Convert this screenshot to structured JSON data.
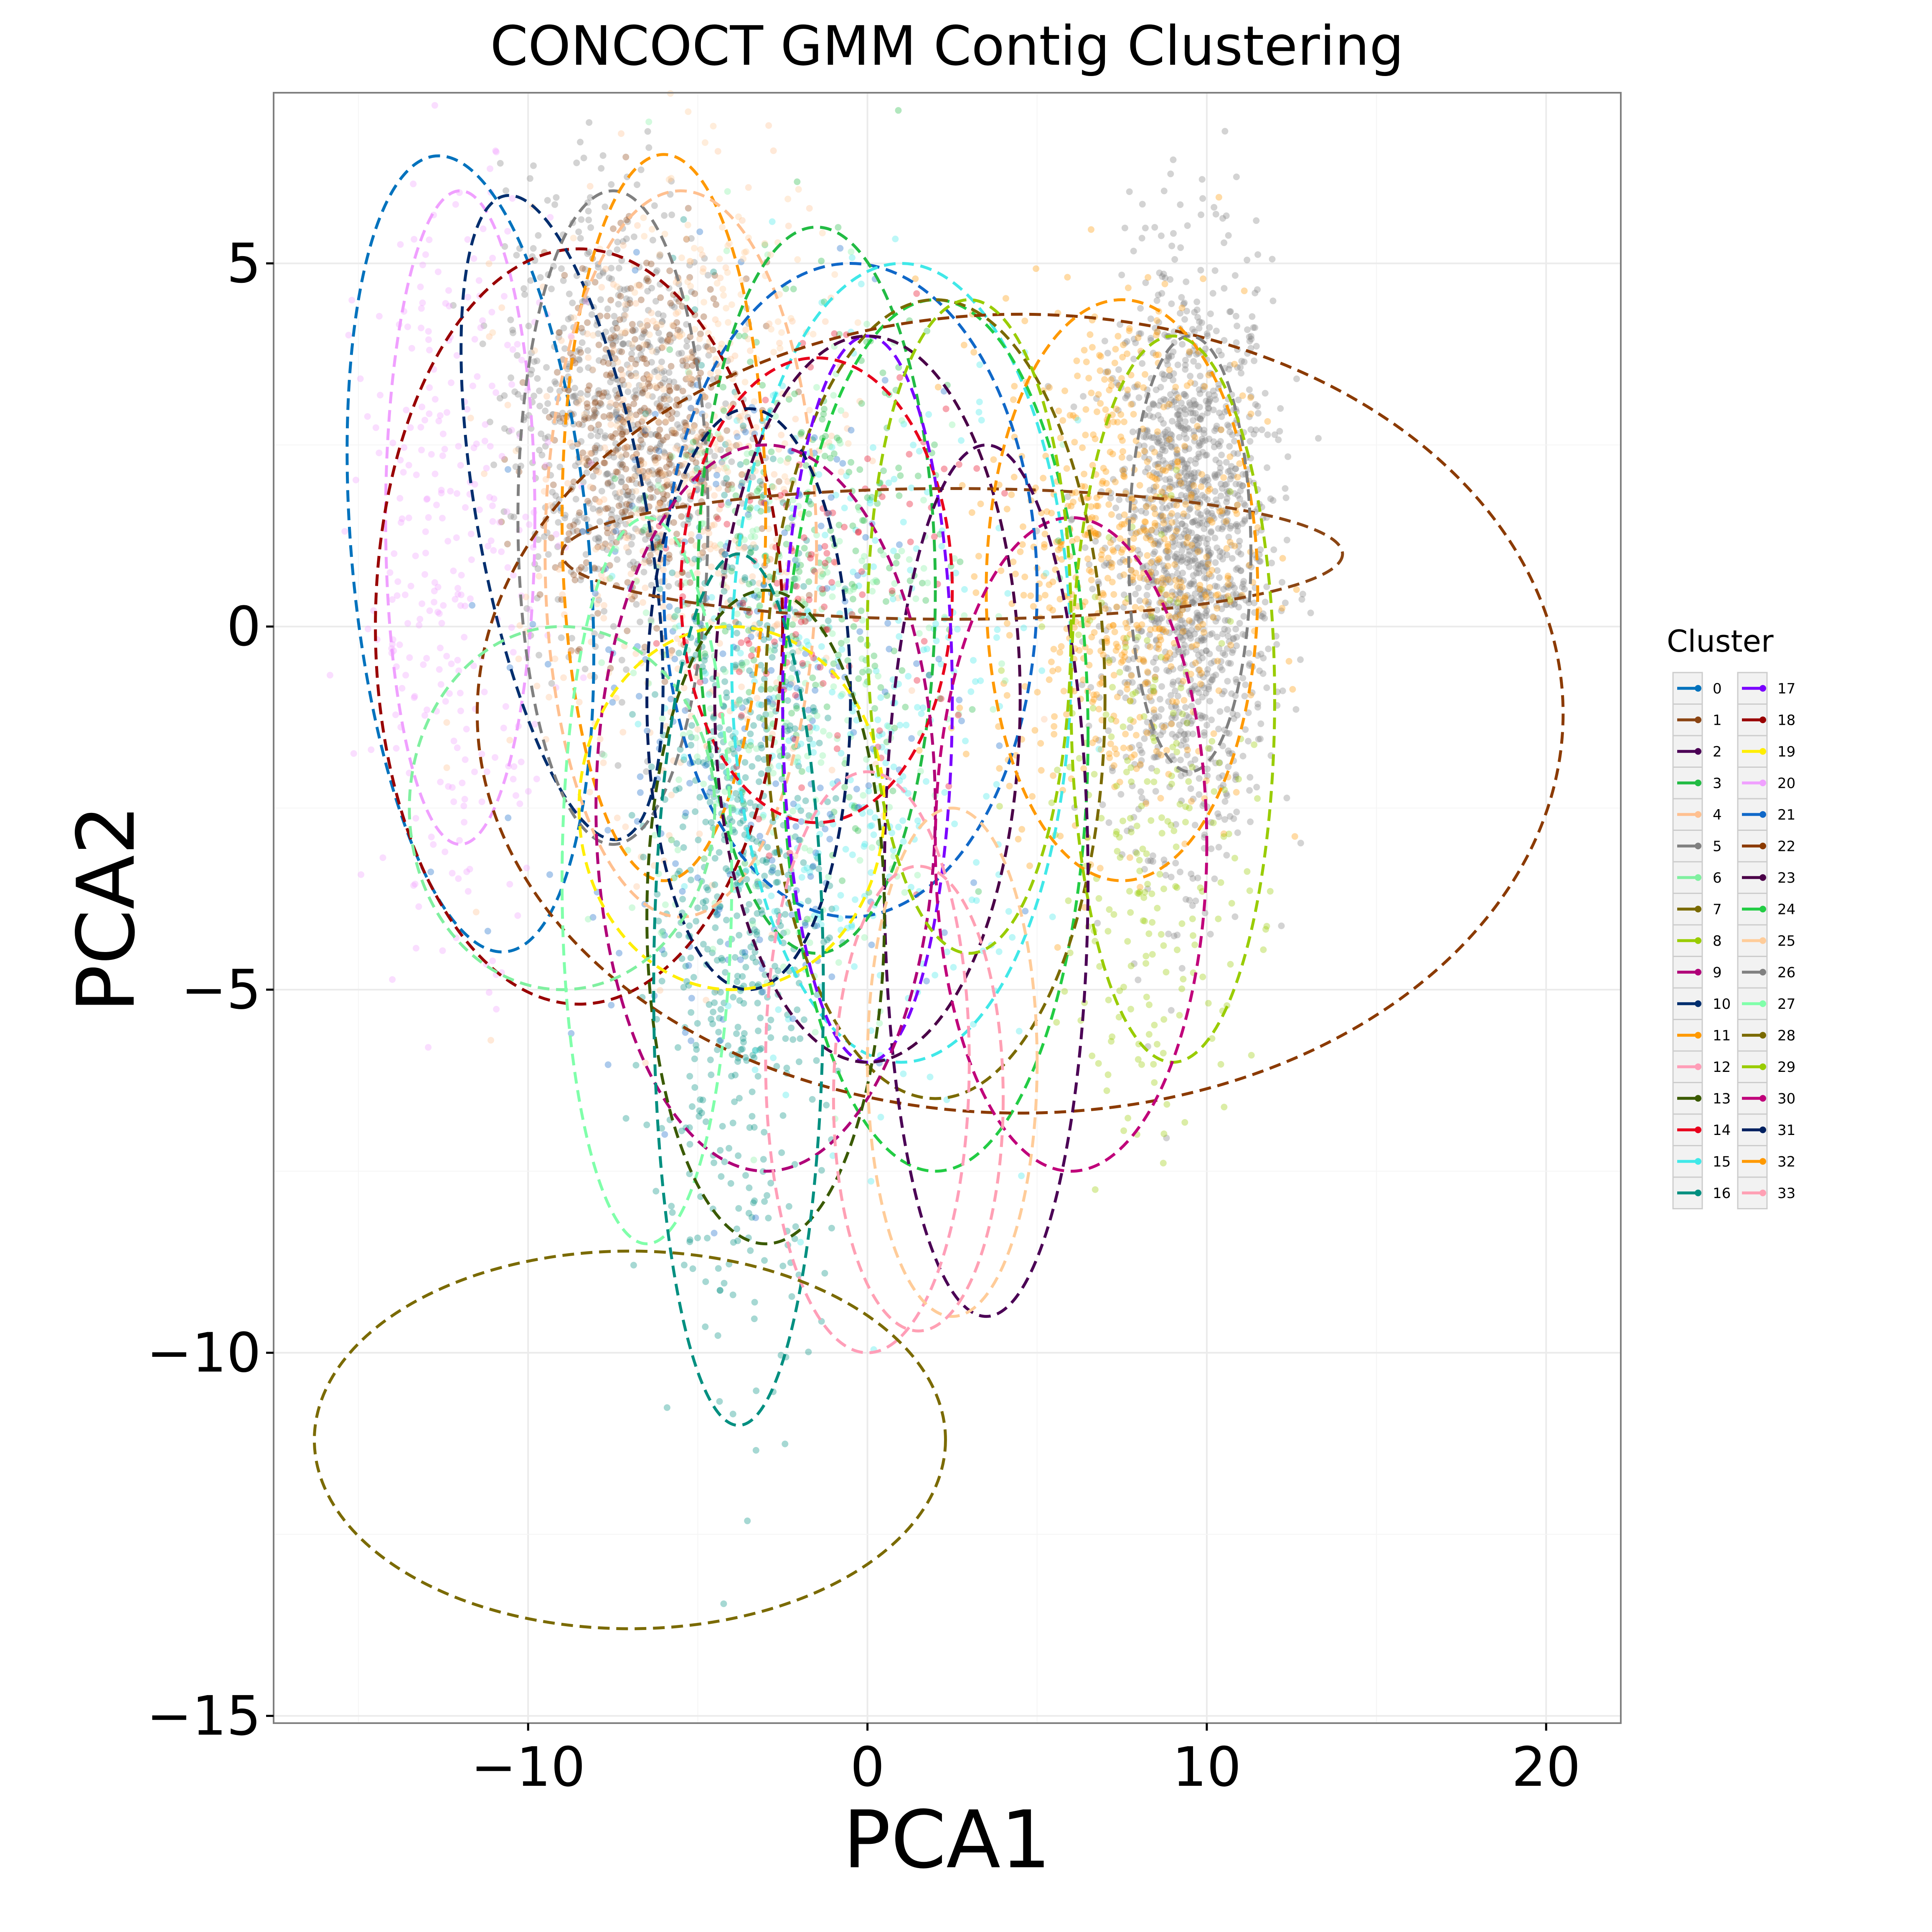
{
  "chart_data": {
    "type": "scatter",
    "title": "CONCOCT GMM Contig Clustering",
    "xlabel": "PCA1",
    "ylabel": "PCA2",
    "xlim": [
      -17.5,
      22.2
    ],
    "ylim": [
      -15.1,
      7.35
    ],
    "x_ticks": [
      -10,
      0,
      10,
      20
    ],
    "x_tick_labels": [
      "−10",
      "0",
      "10",
      "20"
    ],
    "y_ticks": [
      -15,
      -10,
      -5,
      0,
      5
    ],
    "y_tick_labels": [
      "−15",
      "−10",
      "−5",
      "0",
      "5"
    ],
    "grid": true,
    "legend": {
      "title": "Cluster",
      "placement": "right",
      "columns": [
        [
          "0",
          "1",
          "2",
          "3",
          "4",
          "5",
          "6",
          "7",
          "8",
          "9",
          "10",
          "11",
          "12",
          "13",
          "14",
          "15",
          "16"
        ],
        [
          "17",
          "18",
          "19",
          "20",
          "21",
          "22",
          "23",
          "24",
          "25",
          "26",
          "27",
          "28",
          "29",
          "30",
          "31",
          "32",
          "33"
        ]
      ]
    },
    "cluster_colors": {
      "0": "#0072bd",
      "1": "#8b4513",
      "2": "#4b0055",
      "3": "#22bb44",
      "4": "#ffc090",
      "5": "#808080",
      "6": "#80f0a0",
      "7": "#7a6a00",
      "8": "#99cc00",
      "9": "#b00078",
      "10": "#002e6e",
      "11": "#ff9900",
      "12": "#ff9eb8",
      "13": "#3a5a00",
      "14": "#e8001c",
      "15": "#40e8e8",
      "16": "#008f80",
      "17": "#7a00ff",
      "18": "#990000",
      "19": "#ffee00",
      "20": "#f0a0ff",
      "21": "#1068c8",
      "22": "#8b3a00",
      "23": "#4a0048",
      "24": "#22cc44",
      "25": "#ffcc99",
      "26": "#808080",
      "27": "#80ffaa",
      "28": "#7a6a00",
      "29": "#99cc00",
      "30": "#c0007a",
      "31": "#002060",
      "32": "#ff9900",
      "33": "#ffa0b4"
    },
    "ellipses": [
      {
        "cluster": "0",
        "cx": -11.7,
        "cy": 1.0,
        "rx": 3.5,
        "ry": 5.5,
        "angle": 5
      },
      {
        "cluster": "20",
        "cx": -12.0,
        "cy": 1.5,
        "rx": 2.2,
        "ry": 4.5,
        "angle": 0
      },
      {
        "cluster": "18",
        "cx": -8.5,
        "cy": 0.0,
        "rx": 6.0,
        "ry": 5.2,
        "angle": 0
      },
      {
        "cluster": "10",
        "cx": -9.0,
        "cy": 1.5,
        "rx": 2.5,
        "ry": 4.5,
        "angle": 10
      },
      {
        "cluster": "26",
        "cx": -7.5,
        "cy": 1.5,
        "rx": 2.8,
        "ry": 4.5,
        "angle": 0
      },
      {
        "cluster": "11",
        "cx": -6.0,
        "cy": 1.5,
        "rx": 3.0,
        "ry": 5.0,
        "angle": 0
      },
      {
        "cluster": "4",
        "cx": -5.5,
        "cy": 1.0,
        "rx": 4.0,
        "ry": 5.0,
        "angle": 0
      },
      {
        "cluster": "21",
        "cx": -0.5,
        "cy": 0.5,
        "rx": 5.5,
        "ry": 4.5,
        "angle": 0
      },
      {
        "cluster": "3",
        "cx": -1.5,
        "cy": 0.5,
        "rx": 3.5,
        "ry": 5.0,
        "angle": 0
      },
      {
        "cluster": "15",
        "cx": 1.0,
        "cy": -0.5,
        "rx": 5.0,
        "ry": 5.5,
        "angle": 0
      },
      {
        "cluster": "24",
        "cx": 2.0,
        "cy": -1.5,
        "rx": 4.5,
        "ry": 6.0,
        "angle": 0
      },
      {
        "cluster": "28",
        "cx": 2.0,
        "cy": -1.0,
        "rx": 5.0,
        "ry": 5.5,
        "angle": 0
      },
      {
        "cluster": "14",
        "cx": -1.5,
        "cy": 0.5,
        "rx": 4.0,
        "ry": 3.2,
        "angle": 0
      },
      {
        "cluster": "17",
        "cx": 0.0,
        "cy": -1.0,
        "rx": 2.5,
        "ry": 5.0,
        "angle": 0
      },
      {
        "cluster": "23",
        "cx": 0.0,
        "cy": -1.0,
        "rx": 4.5,
        "ry": 5.0,
        "angle": 0
      },
      {
        "cluster": "31",
        "cx": -3.5,
        "cy": -1.0,
        "rx": 3.0,
        "ry": 4.0,
        "angle": 0
      },
      {
        "cluster": "22",
        "cx": 4.5,
        "cy": -1.2,
        "rx": 16.0,
        "ry": 5.5,
        "angle": 0
      },
      {
        "cluster": "1",
        "cx": 2.5,
        "cy": 1.0,
        "rx": 11.5,
        "ry": 0.9,
        "angle": 0
      },
      {
        "cluster": "32",
        "cx": 7.5,
        "cy": 0.5,
        "rx": 4.0,
        "ry": 4.0,
        "angle": 0
      },
      {
        "cluster": "5",
        "cx": 9.5,
        "cy": 1.0,
        "rx": 1.8,
        "ry": 3.0,
        "angle": 0
      },
      {
        "cluster": "29",
        "cx": 9.0,
        "cy": -1.0,
        "rx": 3.0,
        "ry": 5.0,
        "angle": 0
      },
      {
        "cluster": "30",
        "cx": 6.0,
        "cy": -3.0,
        "rx": 4.0,
        "ry": 4.5,
        "angle": 0
      },
      {
        "cluster": "2",
        "cx": 3.5,
        "cy": -3.5,
        "rx": 3.0,
        "ry": 6.0,
        "angle": 0
      },
      {
        "cluster": "9",
        "cx": -3.0,
        "cy": -2.5,
        "rx": 5.0,
        "ry": 5.0,
        "angle": 0
      },
      {
        "cluster": "19",
        "cx": -4.0,
        "cy": -2.5,
        "rx": 4.5,
        "ry": 2.5,
        "angle": 0
      },
      {
        "cluster": "6",
        "cx": -9.0,
        "cy": -2.5,
        "rx": 4.5,
        "ry": 2.5,
        "angle": 0
      },
      {
        "cluster": "27",
        "cx": -6.5,
        "cy": -3.5,
        "rx": 2.5,
        "ry": 5.0,
        "angle": 0
      },
      {
        "cluster": "13",
        "cx": -3.0,
        "cy": -4.0,
        "rx": 3.5,
        "ry": 4.5,
        "angle": 0
      },
      {
        "cluster": "16",
        "cx": -3.8,
        "cy": -5.0,
        "rx": 2.5,
        "ry": 6.0,
        "angle": 0
      },
      {
        "cluster": "12",
        "cx": 0.0,
        "cy": -6.0,
        "rx": 3.0,
        "ry": 4.0,
        "angle": 0
      },
      {
        "cluster": "25",
        "cx": 2.5,
        "cy": -6.0,
        "rx": 2.5,
        "ry": 3.5,
        "angle": 0
      },
      {
        "cluster": "33",
        "cx": 1.5,
        "cy": -6.5,
        "rx": 2.5,
        "ry": 3.2,
        "angle": 0
      },
      {
        "cluster": "8",
        "cx": 3.0,
        "cy": 0.0,
        "rx": 3.0,
        "ry": 4.5,
        "angle": 0
      },
      {
        "cluster": "7",
        "cx": -7.0,
        "cy": -11.2,
        "rx": 9.3,
        "ry": 2.6,
        "angle": 0
      }
    ],
    "point_clouds": [
      {
        "cluster": "5",
        "cx": 9.5,
        "cy": 1.0,
        "sx": 1.2,
        "sy": 2.0,
        "n": 1400
      },
      {
        "cluster": "11",
        "cx": 7.5,
        "cy": 1.0,
        "sx": 1.8,
        "sy": 1.8,
        "n": 650
      },
      {
        "cluster": "26",
        "cx": -7.5,
        "cy": 3.0,
        "sx": 1.6,
        "sy": 1.6,
        "n": 650
      },
      {
        "cluster": "1",
        "cx": -6.5,
        "cy": 2.5,
        "sx": 1.5,
        "sy": 1.2,
        "n": 450
      },
      {
        "cluster": "4",
        "cx": -5.5,
        "cy": 1.0,
        "sx": 2.5,
        "sy": 2.5,
        "n": 350
      },
      {
        "cluster": "20",
        "cx": -12.0,
        "cy": 1.0,
        "sx": 1.5,
        "sy": 2.5,
        "n": 300
      },
      {
        "cluster": "16",
        "cx": -3.8,
        "cy": -3.5,
        "sx": 1.3,
        "sy": 3.0,
        "n": 600
      },
      {
        "cluster": "15",
        "cx": 0.0,
        "cy": -1.5,
        "sx": 2.5,
        "sy": 2.5,
        "n": 300
      },
      {
        "cluster": "3",
        "cx": -1.5,
        "cy": 0.5,
        "sx": 2.0,
        "sy": 2.0,
        "n": 250
      },
      {
        "cluster": "29",
        "cx": 8.5,
        "cy": -3.0,
        "sx": 1.5,
        "sy": 2.0,
        "n": 220
      },
      {
        "cluster": "21",
        "cx": -3.5,
        "cy": -1.0,
        "sx": 3.0,
        "sy": 2.5,
        "n": 250
      },
      {
        "cluster": "6",
        "cx": -2.5,
        "cy": -0.5,
        "sx": 2.5,
        "sy": 2.5,
        "n": 250
      },
      {
        "cluster": "14",
        "cx": -1.5,
        "cy": 0.5,
        "sx": 2.0,
        "sy": 1.5,
        "n": 120
      },
      {
        "cluster": "25",
        "cx": -5.0,
        "cy": 3.5,
        "sx": 2.0,
        "sy": 1.5,
        "n": 200
      }
    ]
  }
}
